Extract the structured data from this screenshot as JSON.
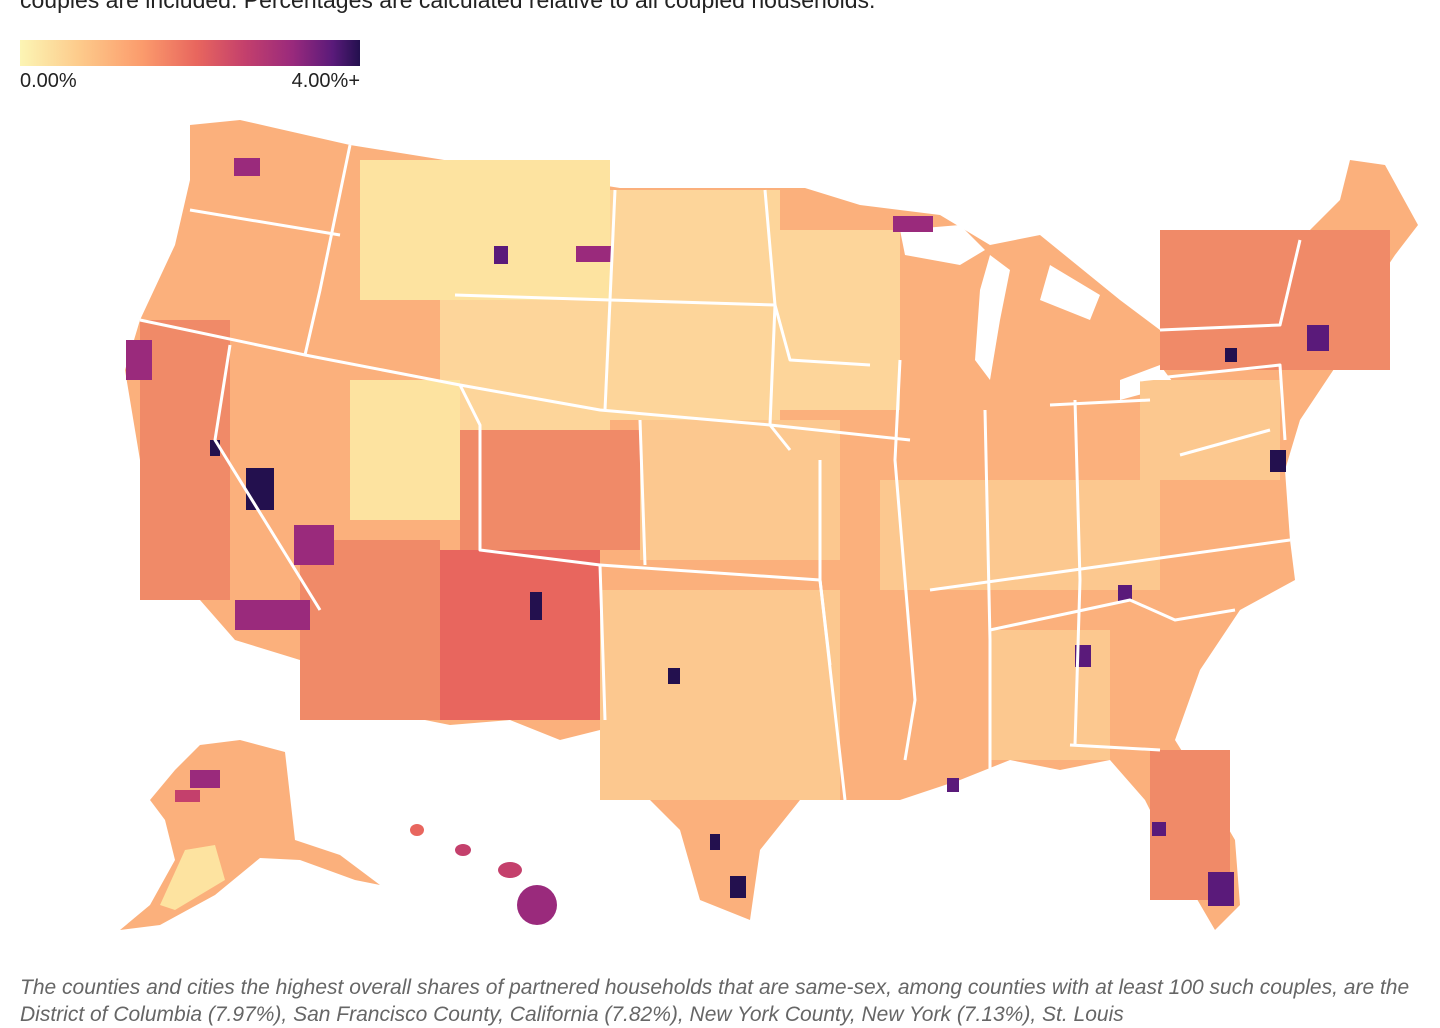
{
  "subtitle": "couples are included. Percentages are calculated relative to all coupled households.",
  "legend": {
    "min_label": "0.00%",
    "max_label": "4.00%+",
    "scale_colors": [
      "#fcf5b4",
      "#fdc98a",
      "#fb9b6c",
      "#e8665e",
      "#c4406c",
      "#9a2a7c",
      "#5a1a7a",
      "#23104e"
    ]
  },
  "map": {
    "region": "United States counties",
    "state_border_color": "#ffffff",
    "base_color": "#fbb07c",
    "low_color": "#fde3a0",
    "high_color": "#23104e"
  },
  "footnote": "The counties and cities the highest overall shares of partnered households that are same-sex, among counties with at least 100 such couples, are the District of Columbia (7.97%), San Francisco County, California (7.82%), New York County, New York (7.13%), St. Louis"
}
